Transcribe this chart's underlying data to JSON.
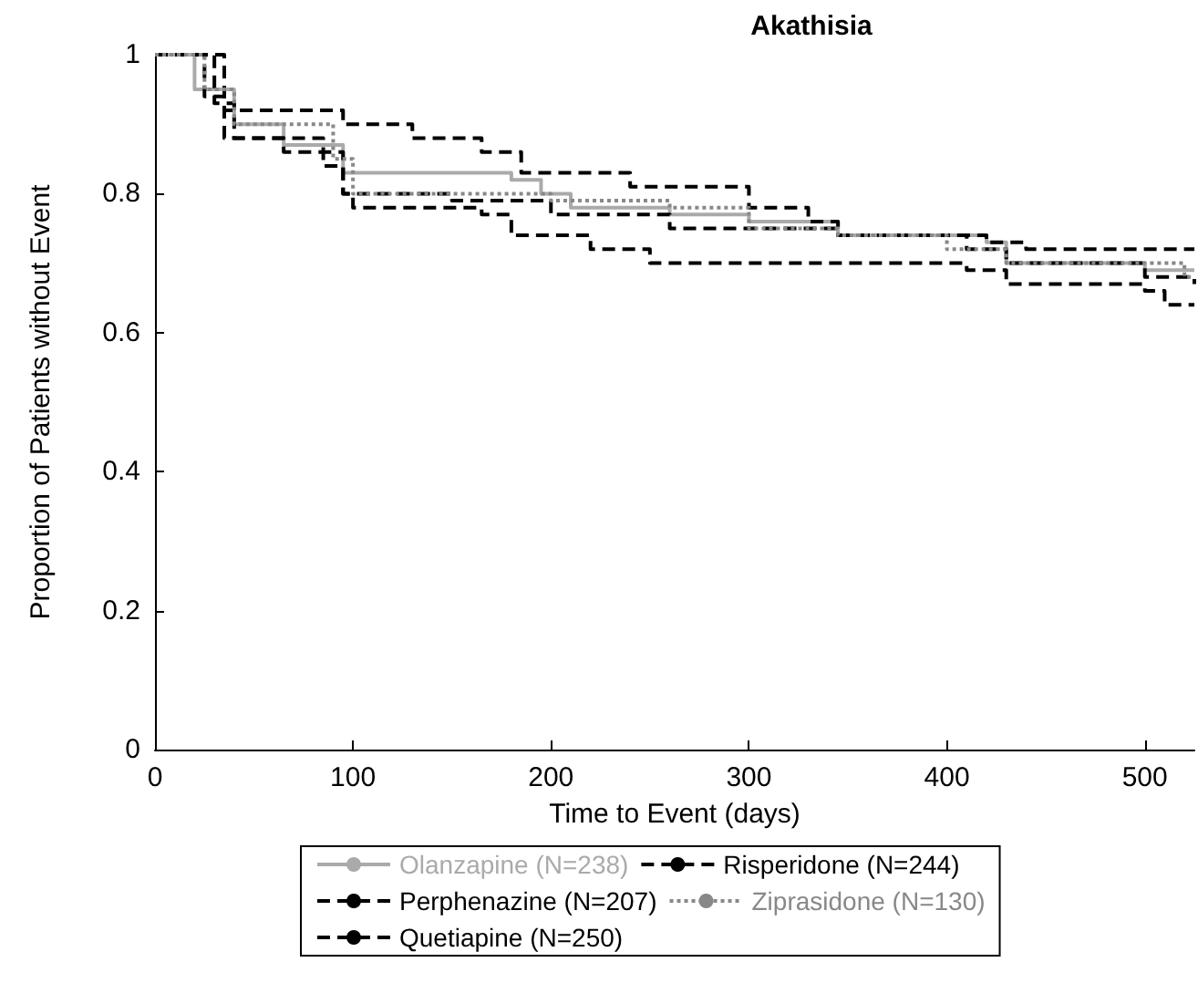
{
  "chart_data": {
    "type": "step",
    "title": "Akathisia",
    "xlabel": "Time to Event (days)",
    "ylabel": "Proportion of Patients without Event",
    "xlim": [
      0,
      525
    ],
    "xticks": [
      0,
      100,
      200,
      300,
      400,
      500
    ],
    "ylim": [
      0,
      1
    ],
    "yticks": [
      0,
      0.2,
      0.4,
      0.6,
      0.8,
      1
    ],
    "grid": false,
    "legend": "bottom",
    "series": [
      {
        "name": "Olanzapine (N=238)",
        "color": "#aaaaaa",
        "line_style": "solid",
        "x": [
          0,
          20,
          40,
          65,
          95,
          180,
          195,
          210,
          260,
          300,
          345,
          420,
          430,
          500,
          525
        ],
        "values": [
          1,
          0.95,
          0.9,
          0.87,
          0.83,
          0.82,
          0.8,
          0.78,
          0.77,
          0.76,
          0.74,
          0.73,
          0.7,
          0.69,
          0.69
        ]
      },
      {
        "name": "Perphenazine (N=207)",
        "color": "#000000",
        "line_style": "dashed",
        "x": [
          0,
          25,
          35,
          65,
          85,
          95,
          100,
          165,
          180,
          220,
          250,
          410,
          430,
          500,
          510,
          525
        ],
        "values": [
          1,
          0.94,
          0.88,
          0.86,
          0.84,
          0.8,
          0.78,
          0.77,
          0.74,
          0.72,
          0.7,
          0.69,
          0.67,
          0.66,
          0.64,
          0.64
        ]
      },
      {
        "name": "Quetiapine (N=250)",
        "color": "#000000",
        "line_style": "dashed",
        "x": [
          0,
          35,
          95,
          130,
          165,
          185,
          240,
          300,
          330,
          345,
          420,
          440,
          525
        ],
        "values": [
          1,
          0.92,
          0.9,
          0.88,
          0.86,
          0.83,
          0.81,
          0.78,
          0.76,
          0.74,
          0.73,
          0.72,
          0.72
        ]
      },
      {
        "name": "Risperidone (N=244)",
        "color": "#000000",
        "line_style": "dashed",
        "x": [
          0,
          30,
          40,
          85,
          95,
          150,
          200,
          260,
          345,
          410,
          430,
          500,
          525
        ],
        "values": [
          1,
          0.93,
          0.88,
          0.86,
          0.8,
          0.79,
          0.77,
          0.75,
          0.74,
          0.72,
          0.7,
          0.68,
          0.67
        ]
      },
      {
        "name": "Ziprasidone (N=130)",
        "color": "#888888",
        "line_style": "dotted",
        "x": [
          0,
          25,
          40,
          90,
          100,
          200,
          260,
          300,
          345,
          400,
          430,
          520,
          525
        ],
        "values": [
          1,
          0.95,
          0.9,
          0.85,
          0.8,
          0.79,
          0.78,
          0.75,
          0.74,
          0.72,
          0.7,
          0.68,
          0.68
        ]
      }
    ]
  }
}
